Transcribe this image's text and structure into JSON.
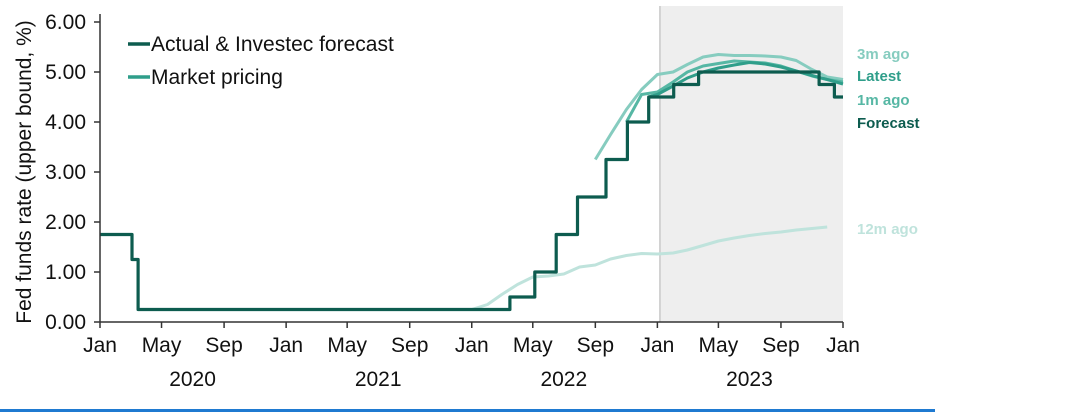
{
  "colors": {
    "actual": "#0d5c4f",
    "latest": "#2f9e8a",
    "one_month": "#56b7a4",
    "three_month": "#86ccbf",
    "twelve_month": "#bfe3dc",
    "shade": "#eeeeee",
    "axis": "#333333",
    "bottom_rule": "#1f7ad1"
  },
  "chart_data": {
    "type": "line",
    "ylabel": "Fed funds rate (upper bound, %)",
    "ylim": [
      0,
      6
    ],
    "yticks": [
      "0.00",
      "1.00",
      "2.00",
      "3.00",
      "4.00",
      "5.00",
      "6.00"
    ],
    "xlim": [
      "2020-01-01",
      "2024-01-01"
    ],
    "xticks": [
      {
        "date": "2020-01-01",
        "label": "Jan"
      },
      {
        "date": "2020-05-01",
        "label": "May"
      },
      {
        "date": "2020-09-01",
        "label": "Sep"
      },
      {
        "date": "2021-01-01",
        "label": "Jan"
      },
      {
        "date": "2021-05-01",
        "label": "May"
      },
      {
        "date": "2021-09-01",
        "label": "Sep"
      },
      {
        "date": "2022-01-01",
        "label": "Jan"
      },
      {
        "date": "2022-05-01",
        "label": "May"
      },
      {
        "date": "2022-09-01",
        "label": "Sep"
      },
      {
        "date": "2023-01-01",
        "label": "Jan"
      },
      {
        "date": "2023-05-01",
        "label": "May"
      },
      {
        "date": "2023-09-01",
        "label": "Sep"
      },
      {
        "date": "2024-01-01",
        "label": "Jan"
      }
    ],
    "years": [
      {
        "label": "2020",
        "center": "2020-07-01"
      },
      {
        "label": "2021",
        "center": "2021-07-01"
      },
      {
        "label": "2022",
        "center": "2022-07-01"
      },
      {
        "label": "2023",
        "center": "2023-07-01"
      }
    ],
    "shaded_region": [
      "2023-01-06",
      "2024-01-01"
    ],
    "legend": [
      {
        "label": "Actual & Investec forecast",
        "series": "actual"
      },
      {
        "label": "Market pricing",
        "series": "latest"
      }
    ],
    "series": [
      {
        "key": "twelve_month",
        "end_label": "12m ago",
        "step": false,
        "points": [
          [
            "2022-01-01",
            0.25
          ],
          [
            "2022-02-01",
            0.35
          ],
          [
            "2022-03-01",
            0.55
          ],
          [
            "2022-04-01",
            0.75
          ],
          [
            "2022-05-01",
            0.9
          ],
          [
            "2022-06-01",
            0.92
          ],
          [
            "2022-07-01",
            0.96
          ],
          [
            "2022-08-01",
            1.1
          ],
          [
            "2022-09-01",
            1.14
          ],
          [
            "2022-10-01",
            1.26
          ],
          [
            "2022-11-01",
            1.33
          ],
          [
            "2022-12-01",
            1.37
          ],
          [
            "2023-01-01",
            1.36
          ],
          [
            "2023-02-01",
            1.38
          ],
          [
            "2023-03-01",
            1.44
          ],
          [
            "2023-04-01",
            1.53
          ],
          [
            "2023-05-01",
            1.62
          ],
          [
            "2023-06-01",
            1.68
          ],
          [
            "2023-07-01",
            1.73
          ],
          [
            "2023-08-01",
            1.77
          ],
          [
            "2023-09-01",
            1.8
          ],
          [
            "2023-10-01",
            1.84
          ],
          [
            "2023-11-01",
            1.87
          ],
          [
            "2023-12-01",
            1.9
          ]
        ]
      },
      {
        "key": "three_month",
        "end_label": "3m ago",
        "step": false,
        "points": [
          [
            "2022-09-01",
            3.25
          ],
          [
            "2022-10-01",
            3.75
          ],
          [
            "2022-11-01",
            4.25
          ],
          [
            "2022-12-01",
            4.65
          ],
          [
            "2023-01-01",
            4.95
          ],
          [
            "2023-02-01",
            5.0
          ],
          [
            "2023-03-01",
            5.15
          ],
          [
            "2023-04-01",
            5.3
          ],
          [
            "2023-05-01",
            5.35
          ],
          [
            "2023-06-01",
            5.33
          ],
          [
            "2023-07-01",
            5.33
          ],
          [
            "2023-08-01",
            5.32
          ],
          [
            "2023-09-01",
            5.3
          ],
          [
            "2023-10-01",
            5.23
          ],
          [
            "2023-11-01",
            5.05
          ],
          [
            "2023-12-01",
            4.9
          ],
          [
            "2024-01-01",
            4.85
          ]
        ]
      },
      {
        "key": "one_month",
        "end_label": "1m ago",
        "step": false,
        "points": [
          [
            "2022-11-01",
            4.0
          ],
          [
            "2022-12-01",
            4.55
          ],
          [
            "2023-01-01",
            4.6
          ],
          [
            "2023-02-01",
            4.8
          ],
          [
            "2023-03-01",
            5.0
          ],
          [
            "2023-04-01",
            5.12
          ],
          [
            "2023-05-01",
            5.17
          ],
          [
            "2023-06-01",
            5.22
          ],
          [
            "2023-07-01",
            5.2
          ],
          [
            "2023-08-01",
            5.18
          ],
          [
            "2023-09-01",
            5.12
          ],
          [
            "2023-10-01",
            5.02
          ],
          [
            "2023-11-01",
            4.92
          ],
          [
            "2023-12-01",
            4.85
          ],
          [
            "2024-01-01",
            4.8
          ]
        ]
      },
      {
        "key": "latest",
        "end_label": "Latest",
        "step": false,
        "points": [
          [
            "2022-12-15",
            4.5
          ],
          [
            "2023-01-01",
            4.55
          ],
          [
            "2023-02-01",
            4.72
          ],
          [
            "2023-03-01",
            4.88
          ],
          [
            "2023-04-01",
            5.0
          ],
          [
            "2023-05-01",
            5.08
          ],
          [
            "2023-06-01",
            5.14
          ],
          [
            "2023-07-01",
            5.19
          ],
          [
            "2023-08-01",
            5.16
          ],
          [
            "2023-09-01",
            5.1
          ],
          [
            "2023-10-01",
            5.02
          ],
          [
            "2023-11-01",
            4.93
          ],
          [
            "2023-12-01",
            4.85
          ],
          [
            "2024-01-01",
            4.76
          ]
        ]
      },
      {
        "key": "actual",
        "end_label": "Forecast",
        "step": true,
        "points": [
          [
            "2020-01-01",
            1.75
          ],
          [
            "2020-03-04",
            1.25
          ],
          [
            "2020-03-16",
            0.25
          ],
          [
            "2022-03-17",
            0.5
          ],
          [
            "2022-05-05",
            1.0
          ],
          [
            "2022-06-16",
            1.75
          ],
          [
            "2022-07-28",
            2.5
          ],
          [
            "2022-09-22",
            3.25
          ],
          [
            "2022-11-03",
            4.0
          ],
          [
            "2022-12-15",
            4.5
          ],
          [
            "2023-02-02",
            4.75
          ],
          [
            "2023-03-23",
            5.0
          ],
          [
            "2023-11-15",
            4.75
          ],
          [
            "2023-12-15",
            4.5
          ],
          [
            "2024-01-01",
            4.5
          ]
        ]
      }
    ]
  }
}
